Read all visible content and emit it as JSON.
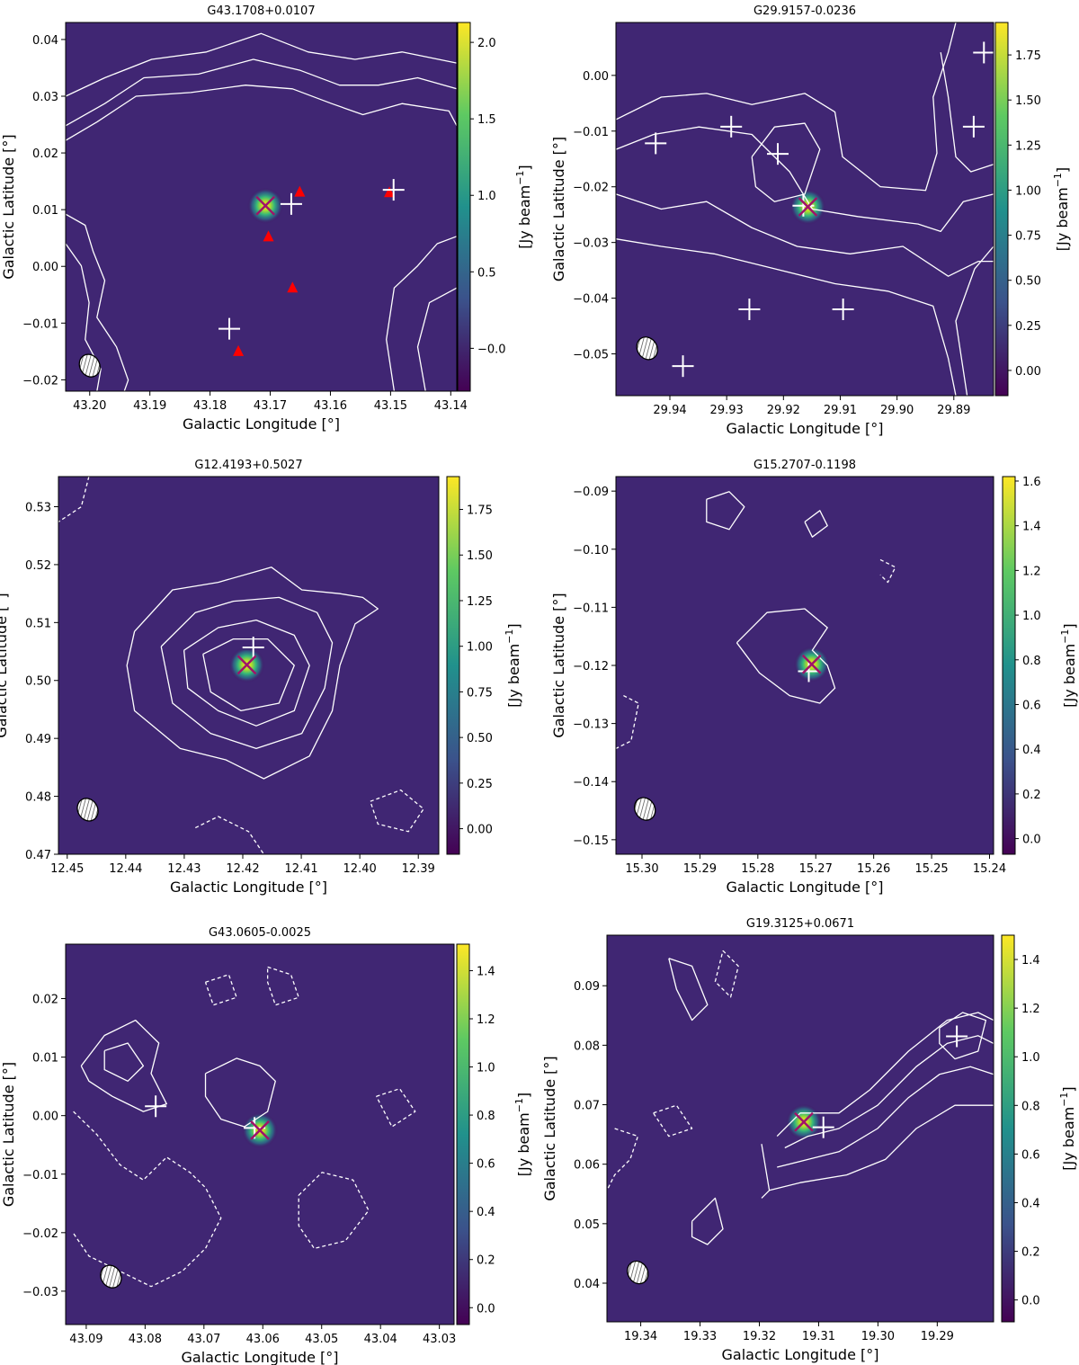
{
  "figure": {
    "colorbar_label": "[Jy beam$^{-1}$]",
    "colors": {
      "cmap": [
        "#440154",
        "#3b528b",
        "#21918c",
        "#5ec962",
        "#fde725"
      ],
      "contour": "#ffffff",
      "cross": "#a0136a",
      "triangle": "#ff0000"
    }
  },
  "chart_data": [
    {
      "type": "heatmap",
      "title": "G43.1708+0.0107",
      "xlabel": "Galactic Longitude [°]",
      "ylabel": "Galactic Latitude [°]",
      "xlim": [
        43.204,
        43.139
      ],
      "ylim": [
        -0.022,
        0.043
      ],
      "xticks": [
        "43.20",
        "43.19",
        "43.18",
        "43.17",
        "43.16",
        "43.15",
        "43.14"
      ],
      "yticks": [
        "−0.02",
        "−0.01",
        "0.00",
        "0.01",
        "0.02",
        "0.03",
        "0.04"
      ],
      "colorbar": {
        "range": [
          -0.28,
          2.13
        ],
        "ticks": [
          "−0.0",
          "0.5",
          "1.0",
          "1.5",
          "2.0"
        ]
      },
      "cross": [
        43.1708,
        0.0107
      ],
      "plus_markers": [
        [
          43.1665,
          0.011
        ],
        [
          43.1495,
          0.0135
        ],
        [
          43.1768,
          -0.011
        ]
      ],
      "triangles": [
        [
          43.1651,
          0.0131
        ],
        [
          43.1502,
          0.013
        ],
        [
          43.1703,
          0.0052
        ],
        [
          43.1663,
          -0.0038
        ],
        [
          43.1753,
          -0.015
        ]
      ],
      "beam": [
        43.2,
        -0.0175
      ]
    },
    {
      "type": "heatmap",
      "title": "G29.9157-0.0236",
      "xlabel": "Galactic Longitude [°]",
      "ylabel": "Galactic Latitude [°]",
      "xlim": [
        29.9495,
        29.883
      ],
      "ylim": [
        -0.0575,
        0.0095
      ],
      "xticks": [
        "29.94",
        "29.93",
        "29.92",
        "29.91",
        "29.90",
        "29.89"
      ],
      "yticks": [
        "−0.05",
        "−0.04",
        "−0.03",
        "−0.02",
        "−0.01",
        "0.00"
      ],
      "colorbar": {
        "range": [
          -0.14,
          1.93
        ],
        "ticks": [
          "0.00",
          "0.25",
          "0.50",
          "0.75",
          "1.00",
          "1.25",
          "1.50",
          "1.75"
        ]
      },
      "cross": [
        29.9157,
        -0.0236
      ],
      "plus_markers": [
        [
          29.9425,
          -0.0122
        ],
        [
          29.9292,
          -0.0092
        ],
        [
          29.921,
          -0.0141
        ],
        [
          29.8865,
          -0.0092
        ],
        [
          29.8847,
          0.0041
        ],
        [
          29.9165,
          -0.0234
        ],
        [
          29.926,
          -0.042
        ],
        [
          29.9095,
          -0.042
        ],
        [
          29.9377,
          -0.0522
        ]
      ],
      "triangles": [],
      "beam": [
        29.944,
        -0.049
      ]
    },
    {
      "type": "heatmap",
      "title": "G12.4193+0.5027",
      "xlabel": "Galactic Longitude [°]",
      "ylabel": "Galactic Latitude [°]",
      "xlim": [
        12.4515,
        12.3865
      ],
      "ylim": [
        0.47,
        0.5352
      ],
      "xticks": [
        "12.45",
        "12.44",
        "12.43",
        "12.42",
        "12.41",
        "12.40",
        "12.39"
      ],
      "yticks": [
        "0.47",
        "0.48",
        "0.49",
        "0.50",
        "0.51",
        "0.52",
        "0.53"
      ],
      "colorbar": {
        "range": [
          -0.14,
          1.93
        ],
        "ticks": [
          "0.00",
          "0.25",
          "0.50",
          "0.75",
          "1.00",
          "1.25",
          "1.50",
          "1.75"
        ]
      },
      "cross": [
        12.4193,
        0.5027
      ],
      "plus_markers": [
        [
          12.4182,
          0.5057
        ]
      ],
      "triangles": [],
      "beam": [
        12.4465,
        0.4777
      ]
    },
    {
      "type": "heatmap",
      "title": "G15.2707-0.1198",
      "xlabel": "Galactic Longitude [°]",
      "ylabel": "Galactic Latitude [°]",
      "xlim": [
        15.3045,
        15.2393
      ],
      "ylim": [
        -0.1525,
        -0.0875
      ],
      "xticks": [
        "15.30",
        "15.29",
        "15.28",
        "15.27",
        "15.26",
        "15.25",
        "15.24"
      ],
      "yticks": [
        "−0.15",
        "−0.14",
        "−0.13",
        "−0.12",
        "−0.11",
        "−0.10",
        "−0.09"
      ],
      "colorbar": {
        "range": [
          -0.07,
          1.62
        ],
        "ticks": [
          "0.0",
          "0.2",
          "0.4",
          "0.6",
          "0.8",
          "1.0",
          "1.2",
          "1.4",
          "1.6"
        ]
      },
      "cross": [
        15.2707,
        -0.1198
      ],
      "plus_markers": [
        [
          15.2712,
          -0.121
        ]
      ],
      "triangles": [],
      "beam": [
        15.2995,
        -0.1447
      ]
    },
    {
      "type": "heatmap",
      "title": "G43.0605-0.0025",
      "xlabel": "Galactic Longitude [°]",
      "ylabel": "Galactic Latitude [°]",
      "xlim": [
        43.0935,
        43.0275
      ],
      "ylim": [
        -0.0357,
        0.0293
      ],
      "xticks": [
        "43.09",
        "43.08",
        "43.07",
        "43.06",
        "43.05",
        "43.04",
        "43.03"
      ],
      "yticks": [
        "−0.03",
        "−0.02",
        "−0.01",
        "0.00",
        "0.01",
        "0.02"
      ],
      "colorbar": {
        "range": [
          -0.07,
          1.51
        ],
        "ticks": [
          "0.0",
          "0.2",
          "0.4",
          "0.6",
          "0.8",
          "1.0",
          "1.2",
          "1.4"
        ]
      },
      "cross": [
        43.0605,
        -0.0025
      ],
      "plus_markers": [
        [
          43.0782,
          0.0016
        ],
        [
          43.0614,
          -0.0021
        ]
      ],
      "triangles": [],
      "beam": [
        43.0858,
        -0.0275
      ]
    },
    {
      "type": "heatmap",
      "title": "G19.3125+0.0671",
      "xlabel": "Galactic Longitude [°]",
      "ylabel": "Galactic Latitude [°]",
      "xlim": [
        19.3457,
        19.2805
      ],
      "ylim": [
        0.0335,
        0.0985
      ],
      "xticks": [
        "19.34",
        "19.33",
        "19.32",
        "19.31",
        "19.30",
        "19.29"
      ],
      "yticks": [
        "0.04",
        "0.05",
        "0.06",
        "0.07",
        "0.08",
        "0.09"
      ],
      "colorbar": {
        "range": [
          -0.09,
          1.5
        ],
        "ticks": [
          "0.0",
          "0.2",
          "0.4",
          "0.6",
          "0.8",
          "1.0",
          "1.2",
          "1.4"
        ]
      },
      "cross": [
        19.3125,
        0.0671
      ],
      "plus_markers": [
        [
          19.3092,
          0.0662
        ],
        [
          19.2867,
          0.0815
        ]
      ],
      "triangles": [],
      "beam": [
        19.3405,
        0.0418
      ]
    }
  ]
}
